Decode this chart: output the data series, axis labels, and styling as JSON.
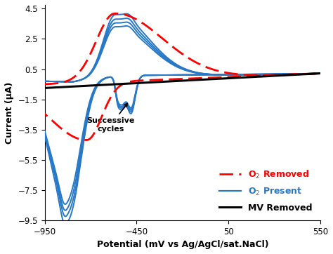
{
  "xlabel": "Potential (mV vs Ag/AgCl/sat.NaCl)",
  "ylabel": "Current (μA)",
  "xlim": [
    -950,
    550
  ],
  "ylim": [
    -9.5,
    4.75
  ],
  "xticks": [
    -950,
    -450,
    50,
    550
  ],
  "yticks": [
    -9.5,
    -7.5,
    -5.5,
    -3.5,
    -1.5,
    0.5,
    2.5,
    4.5
  ],
  "red_color": "#FF0000",
  "blue_color": "#2878C8",
  "black_color": "#000000",
  "annotation_text": "Successive\ncycles"
}
